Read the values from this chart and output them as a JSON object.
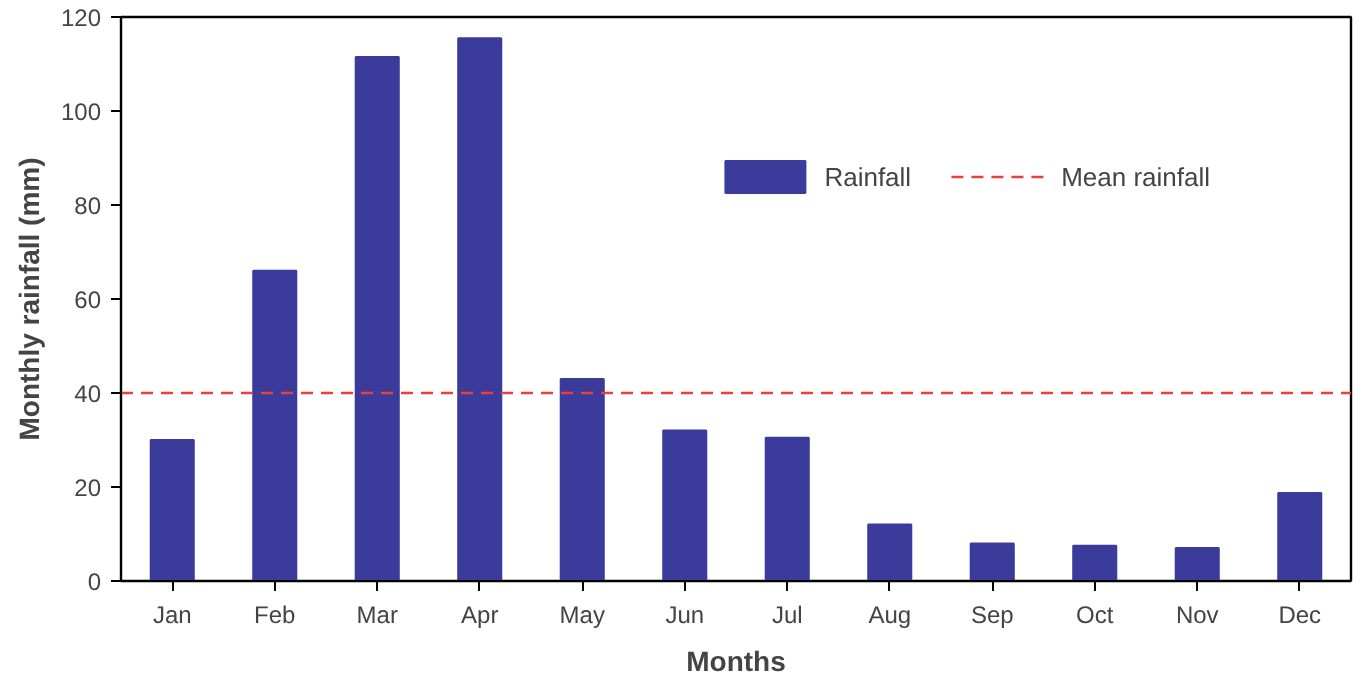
{
  "chart_data": {
    "type": "bar",
    "xlabel": "Months",
    "ylabel": "Monthly rainfall (mm)",
    "categories": [
      "Jan",
      "Feb",
      "Mar",
      "Apr",
      "May",
      "Jun",
      "Jul",
      "Aug",
      "Sep",
      "Oct",
      "Nov",
      "Dec"
    ],
    "series": [
      {
        "name": "Rainfall",
        "color": "#3b3b9b",
        "values": [
          30,
          66,
          111.5,
          115.5,
          43,
          32,
          30.5,
          12,
          8,
          7.5,
          7,
          18.7
        ]
      }
    ],
    "ylim": [
      0,
      120
    ],
    "yticks": [
      0,
      20,
      40,
      60,
      80,
      100,
      120
    ],
    "ref_lines": [
      {
        "axis": "y",
        "value": 40,
        "label": "Mean rainfall",
        "color": "#e8413c",
        "line_style": "dashed"
      }
    ],
    "grid": false,
    "legend": "top right"
  }
}
